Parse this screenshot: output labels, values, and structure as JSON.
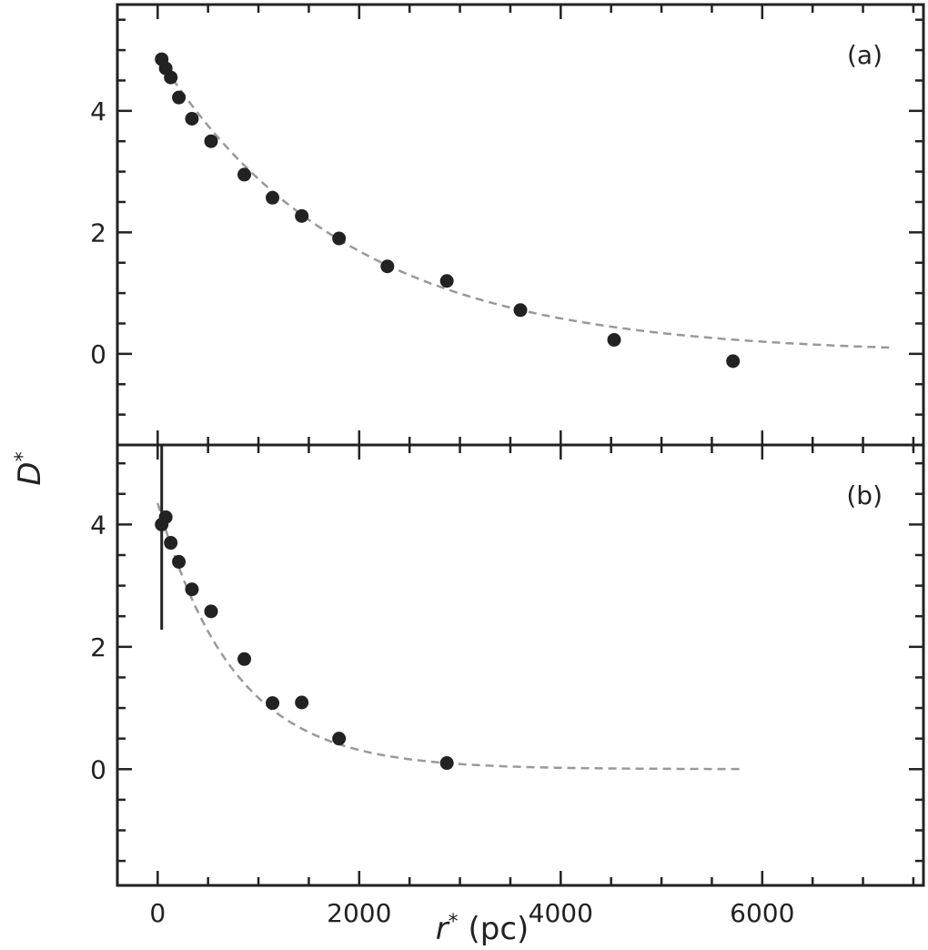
{
  "chart_data": {
    "type": "scatter",
    "xlabel": "r*  (pc)",
    "ylabel": "D*",
    "xlim": [
      -400,
      7600
    ],
    "xticks": [
      0,
      2000,
      4000,
      6000
    ],
    "xtick_labels": [
      "0",
      "2000",
      "4000",
      "6000"
    ],
    "shared_x": true,
    "panels": [
      {
        "label": "(a)",
        "ylim": [
          -1.5,
          5.75
        ],
        "yticks": [
          0,
          2,
          4
        ],
        "ytick_labels": [
          "0",
          "2",
          "4"
        ],
        "points": [
          {
            "x": 40,
            "y": 4.85
          },
          {
            "x": 80,
            "y": 4.7
          },
          {
            "x": 130,
            "y": 4.55
          },
          {
            "x": 210,
            "y": 4.22
          },
          {
            "x": 340,
            "y": 3.87
          },
          {
            "x": 530,
            "y": 3.5
          },
          {
            "x": 860,
            "y": 2.95
          },
          {
            "x": 1140,
            "y": 2.57
          },
          {
            "x": 1430,
            "y": 2.27
          },
          {
            "x": 1800,
            "y": 1.9
          },
          {
            "x": 2280,
            "y": 1.44
          },
          {
            "x": 2870,
            "y": 1.2
          },
          {
            "x": 3600,
            "y": 0.72
          },
          {
            "x": 4530,
            "y": 0.23
          },
          {
            "x": 5710,
            "y": -0.12
          }
        ],
        "fit": {
          "style": "dashed",
          "color": "#999999",
          "model": "A*exp(-x/L)",
          "A": 4.9,
          "L": 1880,
          "x_range": [
            0,
            7300
          ]
        }
      },
      {
        "label": "(b)",
        "ylim": [
          -1.9,
          5.3
        ],
        "yticks": [
          0,
          2,
          4
        ],
        "ytick_labels": [
          "0",
          "2",
          "4"
        ],
        "points": [
          {
            "x": 40,
            "y": 4.0,
            "yerr_low": 2.28,
            "yerr_high": 5.3
          },
          {
            "x": 80,
            "y": 4.12
          },
          {
            "x": 130,
            "y": 3.7
          },
          {
            "x": 210,
            "y": 3.39
          },
          {
            "x": 340,
            "y": 2.94
          },
          {
            "x": 530,
            "y": 2.58
          },
          {
            "x": 860,
            "y": 1.8
          },
          {
            "x": 1140,
            "y": 1.08
          },
          {
            "x": 1430,
            "y": 1.09
          },
          {
            "x": 1800,
            "y": 0.5
          },
          {
            "x": 2870,
            "y": 0.1
          }
        ],
        "fit": {
          "style": "dashed",
          "color": "#999999",
          "model": "A*exp(-x/L)",
          "A": 4.35,
          "L": 760,
          "x_range": [
            0,
            5800
          ]
        }
      }
    ],
    "colors": {
      "points": "#222222",
      "fit": "#999999",
      "frame": "#222222"
    }
  }
}
